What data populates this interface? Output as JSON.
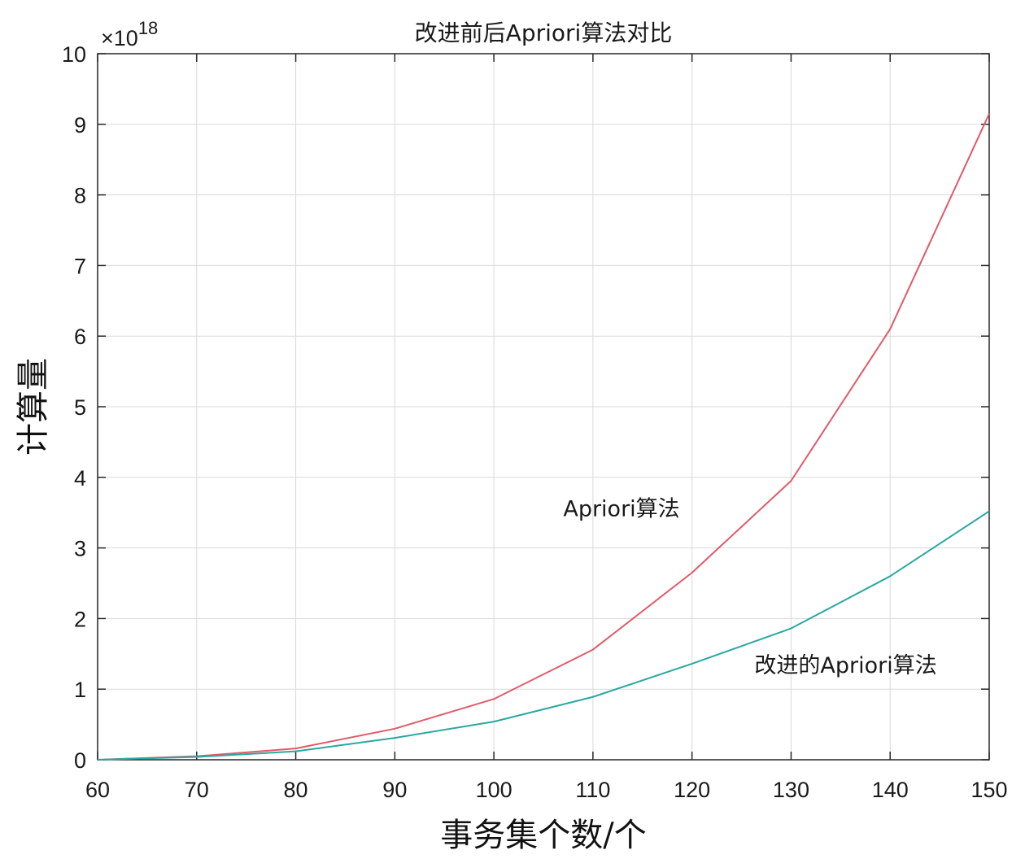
{
  "chart_data": {
    "type": "line",
    "title": "改进前后Apriori算法对比",
    "xlabel": "事务集个数/个",
    "ylabel": "计算量",
    "y_exponent": "×10",
    "y_exponent_power": "18",
    "x": [
      60,
      70,
      80,
      90,
      100,
      110,
      120,
      130,
      140,
      150
    ],
    "xlim": [
      60,
      150
    ],
    "ylim": [
      0,
      10
    ],
    "x_ticks": [
      "60",
      "70",
      "80",
      "90",
      "100",
      "110",
      "120",
      "130",
      "140",
      "150"
    ],
    "y_ticks": [
      "0",
      "1",
      "2",
      "3",
      "4",
      "5",
      "6",
      "7",
      "8",
      "9",
      "10"
    ],
    "grid": true,
    "series": [
      {
        "name": "Apriori算法",
        "color": "#e05a6a",
        "values": [
          0.0,
          0.05,
          0.16,
          0.44,
          0.86,
          1.56,
          2.65,
          3.95,
          6.1,
          9.15
        ]
      },
      {
        "name": "改进的Apriori算法",
        "color": "#2aa8a0",
        "values": [
          0.0,
          0.04,
          0.12,
          0.31,
          0.54,
          0.89,
          1.36,
          1.86,
          2.6,
          3.52
        ]
      }
    ],
    "annotations": [
      {
        "text": "Apriori算法",
        "series": 0
      },
      {
        "text": "改进的Apriori算法",
        "series": 1
      }
    ]
  }
}
